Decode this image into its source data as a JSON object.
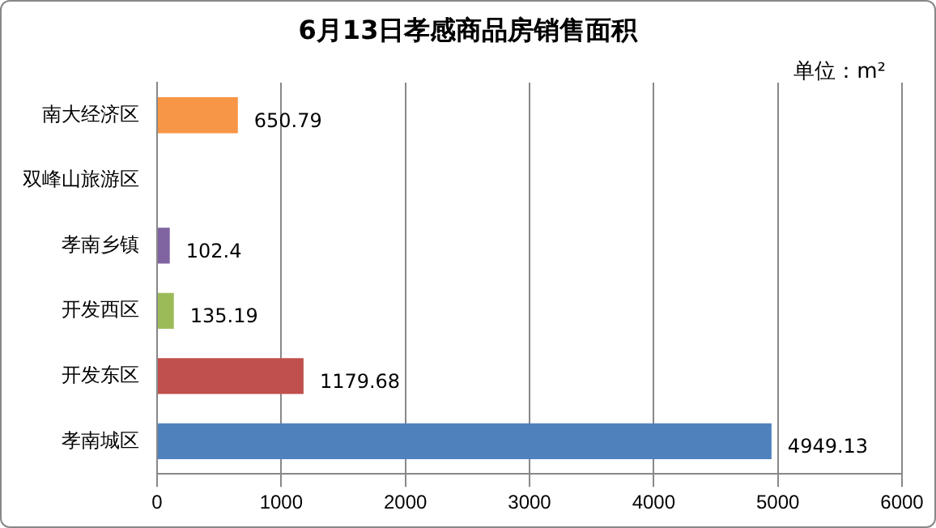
{
  "chart_data": {
    "type": "bar",
    "orientation": "horizontal",
    "title": "6月13日孝感商品房销售面积",
    "annotations": [
      "单位：m²"
    ],
    "categories": [
      "南大经济区",
      "双峰山旅游区",
      "孝南乡镇",
      "开发西区",
      "开发东区",
      "孝南城区"
    ],
    "values": [
      650.79,
      null,
      102.4,
      135.19,
      1179.68,
      4949.13
    ],
    "colors": [
      "#f79646",
      "#4bacc6",
      "#8064a2",
      "#9bbb59",
      "#c0504d",
      "#4f81bd"
    ],
    "xlim": [
      0,
      6000
    ],
    "xticks": [
      0,
      1000,
      2000,
      3000,
      4000,
      5000,
      6000
    ],
    "grid": "x",
    "legend": false,
    "data_labels": true
  }
}
